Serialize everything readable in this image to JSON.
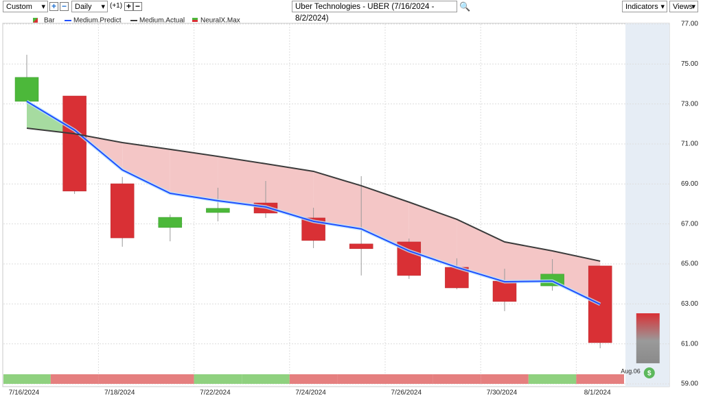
{
  "toolbar": {
    "period": "Custom",
    "interval": "Daily",
    "offset": "(+1)",
    "title": "Uber Technologies - UBER (7/16/2024 - 8/2/2024)",
    "indicators": "Indicators",
    "views": "Views"
  },
  "chart_data": {
    "type": "candlestick",
    "categories": [
      "7/16/2024",
      null,
      "7/18/2024",
      null,
      "7/22/2024",
      null,
      "7/24/2024",
      null,
      "7/26/2024",
      null,
      "7/30/2024",
      null,
      "8/1/2024"
    ],
    "bar_name": "Bar",
    "up_color": "#4cb83a",
    "down_color": "#d93035",
    "open": [
      73.13,
      73.4,
      69.01,
      66.82,
      67.57,
      68.05,
      67.3,
      66.0,
      66.1,
      64.83,
      64.14,
      63.9,
      64.9
    ],
    "close": [
      74.33,
      68.64,
      66.3,
      67.33,
      67.78,
      67.54,
      66.17,
      65.76,
      64.42,
      63.8,
      63.12,
      64.49,
      61.06
    ],
    "high": [
      75.46,
      73.4,
      69.35,
      67.47,
      68.81,
      69.15,
      67.81,
      69.39,
      66.27,
      65.28,
      64.76,
      65.24,
      64.9
    ],
    "low": [
      73.1,
      68.5,
      65.86,
      66.13,
      67.13,
      67.3,
      65.79,
      64.42,
      64.25,
      63.73,
      62.64,
      63.66,
      60.78
    ],
    "series": [
      {
        "name": "Medium.Predict",
        "color": "#1f4fff",
        "values": [
          73.13,
          71.69,
          69.7,
          68.53,
          68.16,
          67.85,
          67.13,
          66.75,
          65.65,
          64.83,
          64.11,
          64.14,
          62.98
        ]
      },
      {
        "name": "Medium.Actual",
        "color": "#3b3b3b",
        "values": [
          71.79,
          71.51,
          71.07,
          70.73,
          70.38,
          70.01,
          69.63,
          68.91,
          68.09,
          67.23,
          66.1,
          65.65,
          65.14
        ]
      }
    ],
    "band_colors": {
      "above": "#a6dba0",
      "below": "#f4c6c6"
    },
    "signal": {
      "name": "NeuralX.Max",
      "colors": [
        "#8fd17f",
        "#e57f7f",
        "#e57f7f",
        "#e57f7f",
        "#8fd17f",
        "#8fd17f",
        "#e57f7f",
        "#e57f7f",
        "#e57f7f",
        "#e57f7f",
        "#e57f7f",
        "#8fd17f",
        "#e57f7f"
      ]
    },
    "forecast": {
      "label": "Aug.06",
      "high": 62.53,
      "low": 60.03
    },
    "ylim": [
      59,
      77
    ],
    "yticks": [
      {
        "value": 59,
        "label": "59.00"
      },
      {
        "value": 61,
        "label": "61.00"
      },
      {
        "value": 63,
        "label": "63.00"
      },
      {
        "value": 65,
        "label": "65.00"
      },
      {
        "value": 67,
        "label": "67.00"
      },
      {
        "value": 69,
        "label": "69.00"
      },
      {
        "value": 71,
        "label": "71.00"
      },
      {
        "value": 73,
        "label": "73.00"
      },
      {
        "value": 75,
        "label": "75.00"
      },
      {
        "value": 77,
        "label": "77.00"
      }
    ],
    "grid": true
  }
}
